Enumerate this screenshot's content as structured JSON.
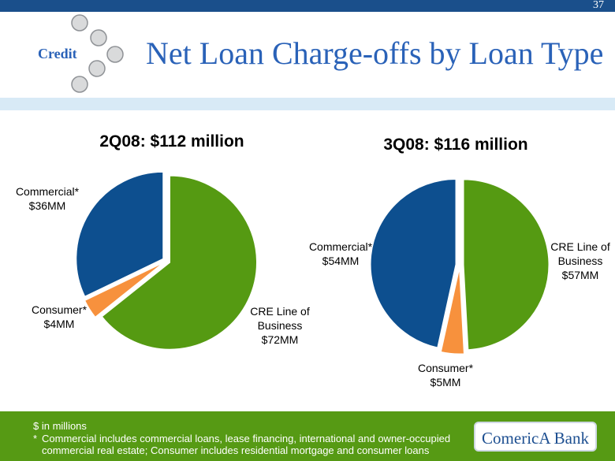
{
  "header": {
    "page_number": "37",
    "section": "Credit",
    "title": "Net Loan Charge-offs by Loan Type"
  },
  "chart_data": [
    {
      "type": "pie",
      "title": "2Q08: $112 million",
      "categories": [
        "CRE Line of Business",
        "Consumer*",
        "Commercial*"
      ],
      "values": [
        72,
        4,
        36
      ],
      "value_labels": [
        "$72MM",
        "$4MM",
        "$36MM"
      ],
      "colors": [
        "#559a12",
        "#f7913d",
        "#0d4f8f"
      ]
    },
    {
      "type": "pie",
      "title": "3Q08: $116 million",
      "categories": [
        "CRE Line of Business",
        "Consumer*",
        "Commercial*"
      ],
      "values": [
        57,
        5,
        54
      ],
      "value_labels": [
        "$57MM",
        "$5MM",
        "$54MM"
      ],
      "colors": [
        "#559a12",
        "#f7913d",
        "#0d4f8f"
      ]
    }
  ],
  "footer": {
    "units": "$ in millions",
    "note_mark": "*",
    "note": "Commercial includes commercial loans, lease financing, international and owner-occupied commercial real estate; Consumer includes residential mortgage and consumer loans",
    "logo": "ComericA Bank"
  }
}
